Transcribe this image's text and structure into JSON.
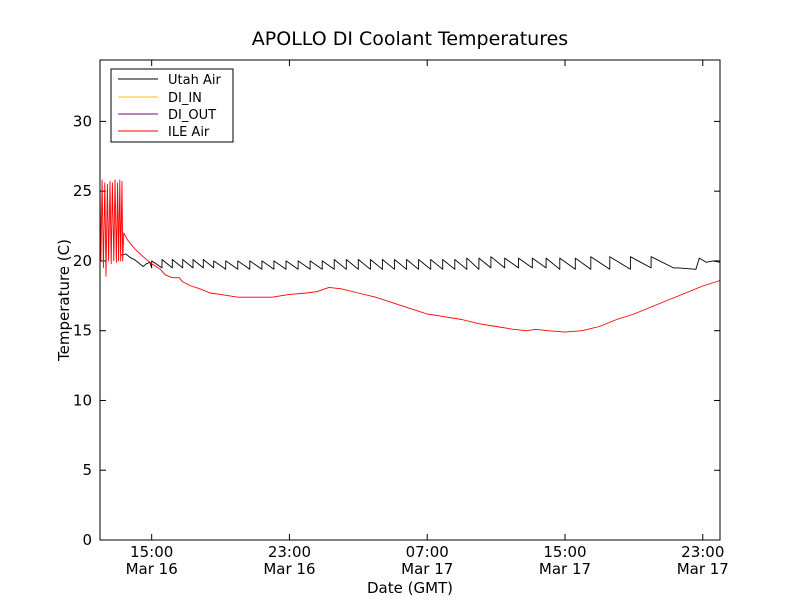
{
  "chart_data": {
    "type": "line",
    "title": "APOLLO DI Coolant Temperatures",
    "xlabel": "Date (GMT)",
    "ylabel": "Temperature (C)",
    "ylim": [
      0,
      34.4
    ],
    "xlim": [
      0,
      36
    ],
    "x_unit": "hours after Mar 16 12:00 GMT",
    "yticks": [
      {
        "value": 0,
        "label": "0"
      },
      {
        "value": 5,
        "label": "5"
      },
      {
        "value": 10,
        "label": "10"
      },
      {
        "value": 15,
        "label": "15"
      },
      {
        "value": 20,
        "label": "20"
      },
      {
        "value": 25,
        "label": "25"
      },
      {
        "value": 30,
        "label": "30"
      }
    ],
    "xticks": [
      {
        "value": 3,
        "time": "15:00",
        "date": "Mar 16"
      },
      {
        "value": 11,
        "time": "23:00",
        "date": "Mar 16"
      },
      {
        "value": 19,
        "time": "07:00",
        "date": "Mar 17"
      },
      {
        "value": 27,
        "time": "15:00",
        "date": "Mar 17"
      },
      {
        "value": 35,
        "time": "23:00",
        "date": "Mar 17"
      }
    ],
    "legend": {
      "position": "top-left",
      "entries": [
        {
          "label": "Utah Air",
          "color": "#000000"
        },
        {
          "label": "DI_IN",
          "color": "#ffbf00"
        },
        {
          "label": "DI_OUT",
          "color": "#800080"
        },
        {
          "label": "ILE Air",
          "color": "#ff0000"
        }
      ]
    },
    "series": [
      {
        "name": "Utah Air",
        "color": "#000000",
        "points": [
          [
            1.2,
            20.4
          ],
          [
            1.5,
            20.5
          ],
          [
            1.8,
            20.2
          ],
          [
            2.0,
            20.1
          ],
          [
            2.3,
            19.8
          ],
          [
            2.5,
            19.6
          ],
          [
            2.7,
            19.8
          ],
          [
            2.9,
            19.9
          ],
          [
            3.0,
            19.5
          ],
          [
            3.0,
            20.0
          ],
          [
            3.6,
            19.5
          ],
          [
            3.6,
            20.1
          ],
          [
            4.2,
            19.5
          ],
          [
            4.2,
            20.1
          ],
          [
            4.8,
            19.5
          ],
          [
            4.8,
            20.1
          ],
          [
            5.4,
            19.5
          ],
          [
            5.4,
            20.1
          ],
          [
            6.0,
            19.5
          ],
          [
            6.0,
            20.1
          ],
          [
            6.6,
            19.5
          ],
          [
            6.6,
            20.0
          ],
          [
            7.3,
            19.4
          ],
          [
            7.3,
            20.0
          ],
          [
            8.0,
            19.4
          ],
          [
            8.0,
            20.0
          ],
          [
            8.7,
            19.4
          ],
          [
            8.7,
            20.0
          ],
          [
            9.4,
            19.4
          ],
          [
            9.4,
            20.0
          ],
          [
            10.1,
            19.4
          ],
          [
            10.1,
            20.0
          ],
          [
            10.8,
            19.4
          ],
          [
            10.8,
            20.0
          ],
          [
            11.5,
            19.4
          ],
          [
            11.5,
            20.0
          ],
          [
            12.2,
            19.4
          ],
          [
            12.2,
            20.0
          ],
          [
            12.9,
            19.4
          ],
          [
            12.9,
            20.0
          ],
          [
            13.6,
            19.4
          ],
          [
            13.6,
            20.1
          ],
          [
            14.3,
            19.4
          ],
          [
            14.3,
            20.1
          ],
          [
            15.0,
            19.4
          ],
          [
            15.0,
            20.1
          ],
          [
            15.7,
            19.4
          ],
          [
            15.7,
            20.1
          ],
          [
            16.4,
            19.4
          ],
          [
            16.4,
            20.1
          ],
          [
            17.1,
            19.4
          ],
          [
            17.1,
            20.1
          ],
          [
            17.8,
            19.4
          ],
          [
            17.8,
            20.1
          ],
          [
            18.5,
            19.4
          ],
          [
            18.5,
            20.1
          ],
          [
            19.2,
            19.4
          ],
          [
            19.2,
            20.1
          ],
          [
            19.9,
            19.4
          ],
          [
            19.9,
            20.1
          ],
          [
            20.6,
            19.4
          ],
          [
            20.6,
            20.1
          ],
          [
            21.3,
            19.4
          ],
          [
            21.3,
            20.2
          ],
          [
            22.0,
            19.4
          ],
          [
            22.0,
            20.2
          ],
          [
            22.7,
            19.5
          ],
          [
            22.7,
            20.3
          ],
          [
            23.5,
            19.5
          ],
          [
            23.5,
            20.2
          ],
          [
            24.3,
            19.5
          ],
          [
            24.3,
            20.2
          ],
          [
            25.1,
            19.5
          ],
          [
            25.1,
            20.2
          ],
          [
            25.9,
            19.5
          ],
          [
            25.9,
            20.2
          ],
          [
            26.7,
            19.4
          ],
          [
            26.7,
            20.2
          ],
          [
            27.6,
            19.4
          ],
          [
            27.6,
            20.2
          ],
          [
            28.5,
            19.4
          ],
          [
            28.5,
            20.3
          ],
          [
            29.6,
            19.4
          ],
          [
            29.6,
            20.3
          ],
          [
            30.8,
            19.4
          ],
          [
            30.8,
            20.3
          ],
          [
            32.0,
            19.5
          ],
          [
            32.0,
            20.3
          ],
          [
            33.3,
            19.5
          ],
          [
            33.6,
            19.5
          ],
          [
            34.6,
            19.4
          ],
          [
            34.8,
            20.2
          ],
          [
            35.2,
            19.9
          ],
          [
            35.6,
            20.0
          ],
          [
            36.0,
            19.9
          ]
        ]
      },
      {
        "name": "DI_IN",
        "color": "#ffbf00",
        "points": []
      },
      {
        "name": "DI_OUT",
        "color": "#800080",
        "points": []
      },
      {
        "name": "ILE Air",
        "color": "#ff0000",
        "points": [
          [
            0.0,
            25.5
          ],
          [
            0.05,
            20.0
          ],
          [
            0.12,
            25.8
          ],
          [
            0.2,
            19.5
          ],
          [
            0.28,
            25.6
          ],
          [
            0.35,
            18.9
          ],
          [
            0.43,
            25.5
          ],
          [
            0.5,
            20.0
          ],
          [
            0.58,
            25.7
          ],
          [
            0.65,
            19.8
          ],
          [
            0.72,
            25.6
          ],
          [
            0.8,
            20.0
          ],
          [
            0.87,
            25.8
          ],
          [
            0.95,
            19.9
          ],
          [
            1.02,
            25.6
          ],
          [
            1.08,
            20.0
          ],
          [
            1.15,
            25.8
          ],
          [
            1.2,
            20.0
          ],
          [
            1.28,
            25.7
          ],
          [
            1.32,
            20.0
          ],
          [
            1.38,
            22.0
          ],
          [
            1.6,
            21.5
          ],
          [
            2.0,
            20.9
          ],
          [
            2.5,
            20.3
          ],
          [
            3.0,
            19.8
          ],
          [
            3.5,
            19.4
          ],
          [
            3.8,
            19.0
          ],
          [
            4.2,
            18.8
          ],
          [
            4.6,
            18.8
          ],
          [
            4.8,
            18.5
          ],
          [
            5.3,
            18.2
          ],
          [
            5.8,
            18.0
          ],
          [
            6.4,
            17.7
          ],
          [
            7.0,
            17.6
          ],
          [
            8.0,
            17.4
          ],
          [
            9.0,
            17.4
          ],
          [
            10.0,
            17.4
          ],
          [
            11.0,
            17.6
          ],
          [
            12.0,
            17.7
          ],
          [
            12.6,
            17.8
          ],
          [
            13.3,
            18.1
          ],
          [
            14.0,
            18.0
          ],
          [
            15.0,
            17.7
          ],
          [
            16.0,
            17.4
          ],
          [
            17.0,
            17.0
          ],
          [
            18.0,
            16.6
          ],
          [
            19.0,
            16.2
          ],
          [
            20.0,
            16.0
          ],
          [
            21.0,
            15.8
          ],
          [
            22.0,
            15.5
          ],
          [
            23.0,
            15.3
          ],
          [
            24.0,
            15.1
          ],
          [
            24.8,
            15.0
          ],
          [
            25.3,
            15.1
          ],
          [
            26.0,
            15.0
          ],
          [
            27.0,
            14.9
          ],
          [
            28.0,
            15.0
          ],
          [
            29.0,
            15.3
          ],
          [
            30.0,
            15.8
          ],
          [
            31.0,
            16.2
          ],
          [
            32.0,
            16.7
          ],
          [
            33.0,
            17.2
          ],
          [
            34.0,
            17.7
          ],
          [
            35.0,
            18.2
          ],
          [
            36.0,
            18.6
          ]
        ]
      }
    ]
  }
}
